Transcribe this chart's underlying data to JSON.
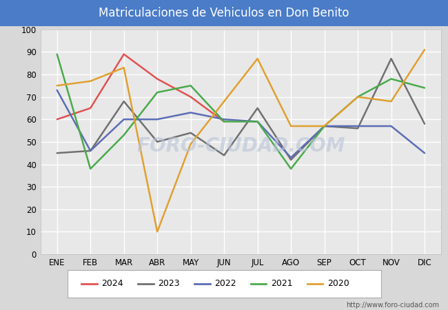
{
  "title": "Matriculaciones de Vehiculos en Don Benito",
  "title_bg_color": "#4a7cc7",
  "title_text_color": "#ffffff",
  "ylim": [
    0,
    100
  ],
  "yticks": [
    0,
    10,
    20,
    30,
    40,
    50,
    60,
    70,
    80,
    90,
    100
  ],
  "months": [
    "ENE",
    "FEB",
    "MAR",
    "ABR",
    "MAY",
    "JUN",
    "JUL",
    "AGO",
    "SEP",
    "OCT",
    "NOV",
    "DIC"
  ],
  "series": {
    "2024": {
      "color": "#e05252",
      "values": [
        60,
        65,
        89,
        78,
        70,
        59,
        null,
        null,
        null,
        null,
        null,
        null
      ]
    },
    "2023": {
      "color": "#707070",
      "values": [
        45,
        46,
        68,
        50,
        54,
        44,
        65,
        42,
        57,
        56,
        87,
        58
      ]
    },
    "2022": {
      "color": "#5b6db5",
      "values": [
        73,
        46,
        60,
        60,
        63,
        60,
        59,
        43,
        57,
        57,
        57,
        45
      ]
    },
    "2021": {
      "color": "#4aaa4a",
      "values": [
        89,
        38,
        53,
        72,
        75,
        59,
        59,
        38,
        57,
        70,
        78,
        74
      ]
    },
    "2020": {
      "color": "#e0a030",
      "values": [
        75,
        77,
        83,
        10,
        49,
        68,
        87,
        57,
        57,
        70,
        68,
        91
      ]
    }
  },
  "legend_order": [
    "2024",
    "2023",
    "2022",
    "2021",
    "2020"
  ],
  "watermark": "FORO-CIUDAD.COM",
  "footnote": "http://www.foro-ciudad.com",
  "outer_bg_color": "#d8d8d8",
  "plot_bg_color": "#e8e8e8",
  "grid_color": "#ffffff",
  "grid_linewidth": 1.0,
  "linewidth": 1.8
}
